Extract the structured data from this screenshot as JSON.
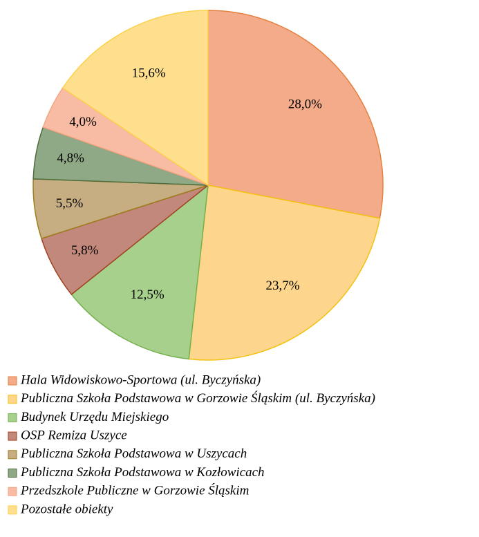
{
  "chart_data": {
    "type": "pie",
    "categories": [
      "Hala Widowiskowo-Sportowa (ul. Byczyńska)",
      "Publiczna Szkoła Podstawowa w Gorzowie Śląskim (ul. Byczyńska)",
      "Budynek Urzędu Miejskiego",
      "OSP Remiza Uszyce",
      "Publiczna Szkoła Podstawowa w Uszycach",
      "Publiczna Szkoła Podstawowa w Kozłowicach",
      "Przedszkole Publiczne w Gorzowie Śląskim",
      "Pozostałe obiekty"
    ],
    "values": [
      28.0,
      23.7,
      12.5,
      5.8,
      5.5,
      4.8,
      4.0,
      15.6
    ],
    "value_labels": [
      "28,0%",
      "23,7%",
      "12,5%",
      "5,8%",
      "5,5%",
      "4,8%",
      "4,0%",
      "15,6%"
    ],
    "colors": [
      "#f4ab8a",
      "#fdd58c",
      "#a8d08d",
      "#c3887c",
      "#c6ad82",
      "#8fa886",
      "#f8bca5",
      "#fedf8d"
    ],
    "border_colors": [
      "#e5813f",
      "#f3c20f",
      "#76b04e",
      "#a2401f",
      "#9d7d1c",
      "#4d6d3c",
      "#f4a582",
      "#fcd14a"
    ],
    "legend": "bottom"
  }
}
